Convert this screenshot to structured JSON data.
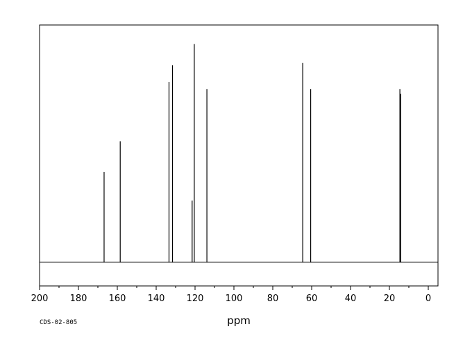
{
  "chart_data": {
    "type": "line",
    "xlabel": "ppm",
    "xlim": [
      200,
      -5
    ],
    "x_reversed": true,
    "ylim": [
      -0.1,
      1.0
    ],
    "baseline": 0,
    "grid": false,
    "legend": "none",
    "tick_values": [
      200,
      180,
      160,
      140,
      120,
      100,
      80,
      60,
      40,
      20,
      0
    ],
    "tick_labels": [
      "200",
      "180",
      "160",
      "140",
      "120",
      "100",
      "80",
      "60",
      "40",
      "20",
      "0"
    ],
    "peaks": [
      {
        "ppm": 166.8,
        "height": 0.38
      },
      {
        "ppm": 158.5,
        "height": 0.51
      },
      {
        "ppm": 133.4,
        "height": 0.76
      },
      {
        "ppm": 131.6,
        "height": 0.83
      },
      {
        "ppm": 121.5,
        "height": 0.26
      },
      {
        "ppm": 120.4,
        "height": 0.92
      },
      {
        "ppm": 113.9,
        "height": 0.73
      },
      {
        "ppm": 64.6,
        "height": 0.84
      },
      {
        "ppm": 60.5,
        "height": 0.73
      },
      {
        "ppm": 14.6,
        "height": 0.73
      },
      {
        "ppm": 14.2,
        "height": 0.71
      }
    ]
  },
  "footer": {
    "code": "CDS-02-805"
  },
  "colors": {
    "line": "#000000",
    "background": "#ffffff"
  }
}
